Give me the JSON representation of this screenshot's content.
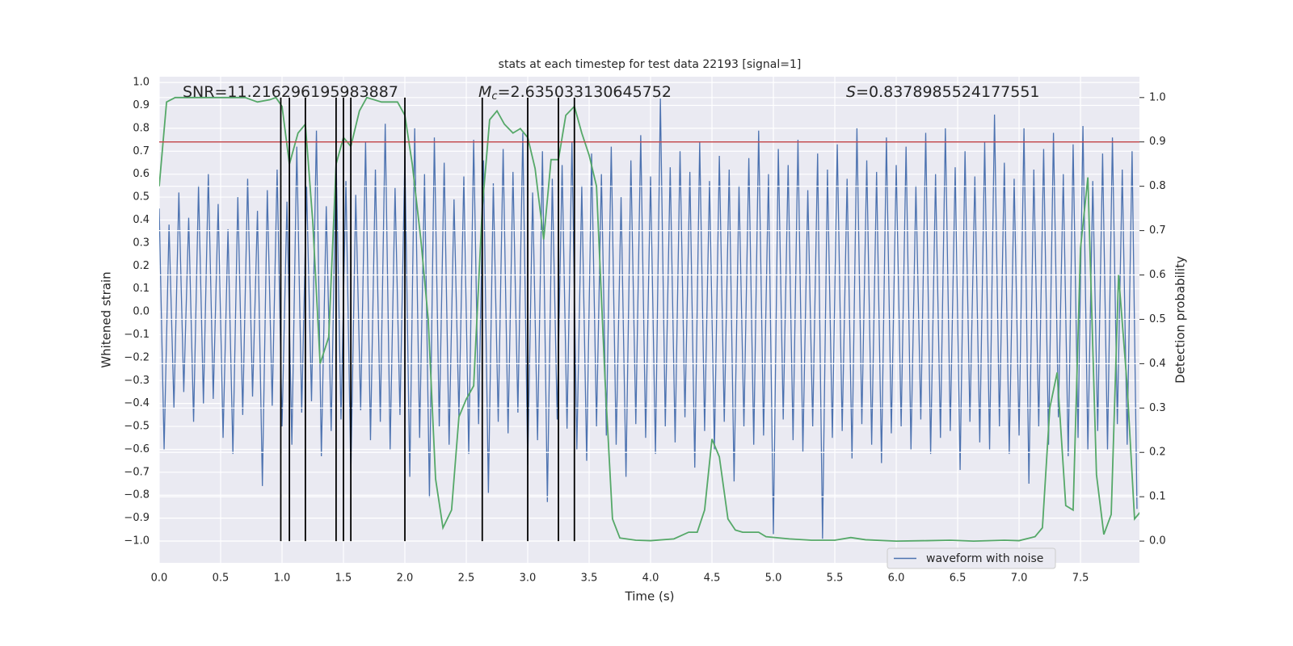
{
  "chart_data": {
    "type": "line",
    "title": "stats at each timestep for test data 22193 [signal=1]",
    "xlabel": "Time (s)",
    "ylabel": "Whitened strain",
    "y2label": "Detection probability",
    "background": "#eaeaf2",
    "grid": true,
    "legend": "lower right",
    "xlim": [
      0,
      7.98
    ],
    "ylim": [
      -1.095,
      1.025
    ],
    "y2lim": [
      -0.049,
      1.047
    ],
    "xticks": [
      {
        "value": 0,
        "label": "0.0"
      },
      {
        "value": 0.5,
        "label": "0.5"
      },
      {
        "value": 1,
        "label": "1.0"
      },
      {
        "value": 1.5,
        "label": "1.5"
      },
      {
        "value": 2,
        "label": "2.0"
      },
      {
        "value": 2.5,
        "label": "2.5"
      },
      {
        "value": 3,
        "label": "3.0"
      },
      {
        "value": 3.5,
        "label": "3.5"
      },
      {
        "value": 4,
        "label": "4.0"
      },
      {
        "value": 4.5,
        "label": "4.5"
      },
      {
        "value": 5,
        "label": "5.0"
      },
      {
        "value": 5.5,
        "label": "5.5"
      },
      {
        "value": 6,
        "label": "6.0"
      },
      {
        "value": 6.5,
        "label": "6.5"
      },
      {
        "value": 7,
        "label": "7.0"
      },
      {
        "value": 7.5,
        "label": "7.5"
      }
    ],
    "yticks": [
      {
        "value": 1,
        "label": "1.0"
      },
      {
        "value": 0.9,
        "label": "0.9"
      },
      {
        "value": 0.8,
        "label": "0.8"
      },
      {
        "value": 0.7,
        "label": "0.7"
      },
      {
        "value": 0.6,
        "label": "0.6"
      },
      {
        "value": 0.5,
        "label": "0.5"
      },
      {
        "value": 0.4,
        "label": "0.4"
      },
      {
        "value": 0.3,
        "label": "0.3"
      },
      {
        "value": 0.2,
        "label": "0.2"
      },
      {
        "value": 0.1,
        "label": "0.1"
      },
      {
        "value": 0,
        "label": "0.0"
      },
      {
        "value": -0.1,
        "label": "−0.1"
      },
      {
        "value": -0.2,
        "label": "−0.2"
      },
      {
        "value": -0.3,
        "label": "−0.3"
      },
      {
        "value": -0.4,
        "label": "−0.4"
      },
      {
        "value": -0.5,
        "label": "−0.5"
      },
      {
        "value": -0.6,
        "label": "−0.6"
      },
      {
        "value": -0.7,
        "label": "−0.7"
      },
      {
        "value": -0.8,
        "label": "−0.8"
      },
      {
        "value": -0.9,
        "label": "−0.9"
      },
      {
        "value": -1,
        "label": "−1.0"
      }
    ],
    "y2ticks": [
      {
        "value": 0,
        "label": "0.0"
      },
      {
        "value": 0.1,
        "label": "0.1"
      },
      {
        "value": 0.2,
        "label": "0.2"
      },
      {
        "value": 0.3,
        "label": "0.3"
      },
      {
        "value": 0.4,
        "label": "0.4"
      },
      {
        "value": 0.5,
        "label": "0.5"
      },
      {
        "value": 0.6,
        "label": "0.6"
      },
      {
        "value": 0.7,
        "label": "0.7"
      },
      {
        "value": 0.8,
        "label": "0.8"
      },
      {
        "value": 0.9,
        "label": "0.9"
      },
      {
        "value": 1,
        "label": "1.0"
      }
    ],
    "series": [
      {
        "name": "waveform with noise",
        "color": "#4c72b0",
        "x": [
          0,
          0.04,
          0.08,
          0.12,
          0.16,
          0.2,
          0.24,
          0.28,
          0.32,
          0.36,
          0.4,
          0.44,
          0.48,
          0.52,
          0.56,
          0.6,
          0.64,
          0.68,
          0.72,
          0.76,
          0.8,
          0.84,
          0.88,
          0.92,
          0.96,
          1,
          1.04,
          1.08,
          1.12,
          1.16,
          1.2,
          1.24,
          1.28,
          1.32,
          1.36,
          1.4,
          1.44,
          1.48,
          1.52,
          1.56,
          1.6,
          1.64,
          1.68,
          1.72,
          1.76,
          1.8,
          1.84,
          1.88,
          1.92,
          1.96,
          2,
          2.04,
          2.08,
          2.12,
          2.16,
          2.2,
          2.24,
          2.28,
          2.32,
          2.36,
          2.4,
          2.44,
          2.48,
          2.52,
          2.56,
          2.6,
          2.64,
          2.68,
          2.72,
          2.76,
          2.8,
          2.84,
          2.88,
          2.92,
          2.96,
          3,
          3.04,
          3.08,
          3.12,
          3.16,
          3.2,
          3.24,
          3.28,
          3.32,
          3.36,
          3.4,
          3.44,
          3.48,
          3.52,
          3.56,
          3.6,
          3.64,
          3.68,
          3.72,
          3.76,
          3.8,
          3.84,
          3.88,
          3.92,
          3.96,
          4,
          4.04,
          4.08,
          4.12,
          4.16,
          4.2,
          4.24,
          4.28,
          4.32,
          4.36,
          4.4,
          4.44,
          4.48,
          4.52,
          4.56,
          4.6,
          4.64,
          4.68,
          4.72,
          4.76,
          4.8,
          4.84,
          4.88,
          4.92,
          4.96,
          5,
          5.04,
          5.08,
          5.12,
          5.16,
          5.2,
          5.24,
          5.28,
          5.32,
          5.36,
          5.4,
          5.44,
          5.48,
          5.52,
          5.56,
          5.6,
          5.64,
          5.68,
          5.72,
          5.76,
          5.8,
          5.84,
          5.88,
          5.92,
          5.96,
          6,
          6.04,
          6.08,
          6.12,
          6.16,
          6.2,
          6.24,
          6.28,
          6.32,
          6.36,
          6.4,
          6.44,
          6.48,
          6.52,
          6.56,
          6.6,
          6.64,
          6.68,
          6.72,
          6.76,
          6.8,
          6.84,
          6.88,
          6.92,
          6.96,
          7,
          7.04,
          7.08,
          7.12,
          7.16,
          7.2,
          7.24,
          7.28,
          7.32,
          7.36,
          7.4,
          7.44,
          7.48,
          7.52,
          7.56,
          7.6,
          7.64,
          7.68,
          7.72,
          7.76,
          7.8,
          7.84,
          7.88,
          7.92,
          7.96
        ],
        "values": [
          0.45,
          -0.6,
          0.38,
          -0.42,
          0.52,
          -0.35,
          0.41,
          -0.48,
          0.55,
          -0.4,
          0.6,
          -0.38,
          0.47,
          -0.55,
          0.36,
          -0.62,
          0.5,
          -0.45,
          0.58,
          -0.37,
          0.44,
          -0.76,
          0.53,
          -0.41,
          0.62,
          -0.5,
          0.48,
          -0.58,
          0.72,
          -0.44,
          0.55,
          -0.39,
          0.79,
          -0.63,
          0.46,
          -0.52,
          0.68,
          -0.47,
          0.57,
          -0.71,
          0.51,
          -0.43,
          0.74,
          -0.56,
          0.62,
          -0.48,
          0.82,
          -0.6,
          0.54,
          -0.45,
          0.68,
          -0.72,
          0.8,
          -0.55,
          0.6,
          -0.81,
          0.76,
          -0.5,
          0.65,
          -0.58,
          0.49,
          -0.46,
          0.59,
          -0.62,
          0.75,
          -0.49,
          0.66,
          -0.79,
          0.56,
          -0.48,
          0.71,
          -0.53,
          0.61,
          -0.44,
          0.78,
          -0.67,
          0.52,
          -0.56,
          0.7,
          -0.83,
          0.58,
          -0.47,
          0.64,
          -0.51,
          0.74,
          -0.6,
          0.55,
          -0.65,
          0.69,
          -0.5,
          0.6,
          -0.54,
          0.72,
          -0.58,
          0.5,
          -0.72,
          0.66,
          -0.49,
          0.77,
          -0.55,
          0.59,
          -0.62,
          0.93,
          -0.5,
          0.63,
          -0.57,
          0.7,
          -0.46,
          0.61,
          -0.68,
          0.74,
          -0.52,
          0.57,
          -0.6,
          0.68,
          -0.48,
          0.62,
          -0.74,
          0.55,
          -0.5,
          0.67,
          -0.58,
          0.79,
          -0.54,
          0.6,
          -0.97,
          0.71,
          -0.47,
          0.64,
          -0.56,
          0.75,
          -0.61,
          0.53,
          -0.5,
          0.69,
          -0.99,
          0.62,
          -0.55,
          0.73,
          -0.52,
          0.58,
          -0.64,
          0.8,
          -0.49,
          0.66,
          -0.58,
          0.61,
          -0.66,
          0.76,
          -0.53,
          0.64,
          -0.5,
          0.72,
          -0.6,
          0.55,
          -0.47,
          0.78,
          -0.62,
          0.6,
          -0.55,
          0.8,
          -0.52,
          0.63,
          -0.69,
          0.7,
          -0.48,
          0.59,
          -0.57,
          0.74,
          -0.6,
          0.86,
          -0.5,
          0.65,
          -0.62,
          0.58,
          -0.54,
          0.8,
          -0.75,
          0.62,
          -0.5,
          0.71,
          -0.58,
          0.78,
          -0.46,
          0.6,
          -0.63,
          0.73,
          -0.55,
          0.81,
          -0.6,
          0.57,
          -0.52,
          0.69,
          -0.6,
          0.76,
          -0.49,
          0.62,
          -0.58,
          0.7,
          -0.86
        ]
      },
      {
        "color": "#55a868",
        "axis": "y2",
        "x": [
          0,
          0.06,
          0.13,
          0.5,
          0.7,
          0.75,
          0.8,
          0.9,
          0.95,
          1,
          1.06,
          1.13,
          1.19,
          1.25,
          1.31,
          1.38,
          1.44,
          1.5,
          1.56,
          1.63,
          1.69,
          1.75,
          1.81,
          1.88,
          1.94,
          2,
          2.06,
          2.13,
          2.19,
          2.25,
          2.31,
          2.38,
          2.44,
          2.5,
          2.56,
          2.63,
          2.69,
          2.75,
          2.81,
          2.88,
          2.94,
          3,
          3.06,
          3.13,
          3.19,
          3.25,
          3.31,
          3.38,
          3.44,
          3.5,
          3.56,
          3.63,
          3.69,
          3.75,
          3.88,
          4,
          4.19,
          4.31,
          4.38,
          4.44,
          4.5,
          4.56,
          4.63,
          4.69,
          4.75,
          4.88,
          4.94,
          5.13,
          5.31,
          5.5,
          5.63,
          5.75,
          6,
          6.25,
          6.44,
          6.63,
          6.88,
          7,
          7.13,
          7.19,
          7.25,
          7.31,
          7.38,
          7.44,
          7.5,
          7.56,
          7.63,
          7.69,
          7.75,
          7.81,
          7.88,
          7.94,
          8
        ],
        "values": [
          0.8,
          0.99,
          1,
          1,
          1,
          0.995,
          0.99,
          0.995,
          1,
          0.98,
          0.85,
          0.92,
          0.94,
          0.72,
          0.4,
          0.46,
          0.85,
          0.91,
          0.89,
          0.97,
          1,
          0.995,
          0.99,
          0.99,
          0.99,
          0.96,
          0.85,
          0.68,
          0.5,
          0.14,
          0.03,
          0.07,
          0.28,
          0.32,
          0.35,
          0.75,
          0.95,
          0.97,
          0.94,
          0.92,
          0.93,
          0.91,
          0.84,
          0.68,
          0.86,
          0.86,
          0.96,
          0.98,
          0.92,
          0.87,
          0.8,
          0.36,
          0.05,
          0.007,
          0.002,
          0.001,
          0.005,
          0.02,
          0.02,
          0.07,
          0.23,
          0.19,
          0.05,
          0.025,
          0.02,
          0.02,
          0.01,
          0.005,
          0.002,
          0.002,
          0.008,
          0.003,
          0,
          0.001,
          0.002,
          0,
          0.002,
          0.001,
          0.01,
          0.03,
          0.3,
          0.38,
          0.08,
          0.07,
          0.66,
          0.82,
          0.15,
          0.015,
          0.06,
          0.6,
          0.35,
          0.05,
          0.07
        ]
      }
    ],
    "threshold": {
      "axis": "y2",
      "value": 0.9,
      "color": "#c44e52"
    },
    "detections": {
      "color": "#000000",
      "x": [
        0.99,
        1.06,
        1.19,
        1.44,
        1.5,
        1.56,
        2,
        2.63,
        3,
        3.25,
        3.38
      ]
    },
    "annotations": [
      {
        "text": "SNR=11.216296195983887"
      },
      {
        "symbol": "M",
        "subscript": "c",
        "text": "=2.635033130645752"
      },
      {
        "symbol": "S",
        "text": "=0.8378985524177551"
      }
    ]
  }
}
